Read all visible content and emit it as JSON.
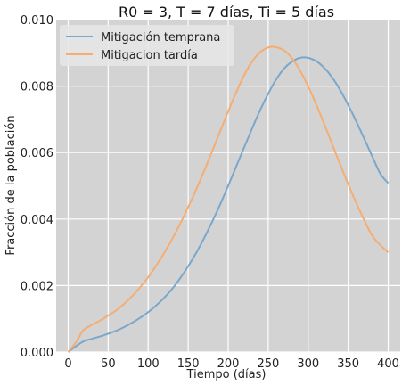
{
  "chart_data": {
    "type": "line",
    "title": "R0 = 3, T = 7 días, Ti = 5 días",
    "xlabel": "Tiempo (días)",
    "ylabel": "Fracción de la población",
    "xlim": [
      -15,
      415
    ],
    "ylim": [
      0,
      0.01
    ],
    "x_ticks": [
      0,
      50,
      100,
      150,
      200,
      250,
      300,
      350,
      400
    ],
    "x_tick_labels": [
      "0",
      "50",
      "100",
      "150",
      "200",
      "250",
      "300",
      "350",
      "400"
    ],
    "y_ticks": [
      0,
      0.002,
      0.004,
      0.006,
      0.008,
      0.01
    ],
    "y_tick_labels": [
      "0.000",
      "0.002",
      "0.004",
      "0.006",
      "0.008",
      "0.010"
    ],
    "grid": true,
    "background": "#d3d3d3",
    "legend_position": "top-left",
    "series": [
      {
        "name": "Mitigación temprana",
        "color": "#7aa7cc",
        "x": [
          0,
          10,
          20,
          30,
          40,
          50,
          60,
          70,
          80,
          90,
          100,
          110,
          120,
          130,
          140,
          150,
          160,
          170,
          180,
          190,
          200,
          210,
          220,
          230,
          240,
          250,
          260,
          270,
          280,
          290,
          300,
          310,
          320,
          330,
          340,
          350,
          360,
          370,
          380,
          390,
          400
        ],
        "y": [
          0.0,
          0.00018,
          0.00033,
          0.0004,
          0.00047,
          0.00055,
          0.00064,
          0.00075,
          0.00088,
          0.00103,
          0.0012,
          0.0014,
          0.00163,
          0.0019,
          0.00222,
          0.00258,
          0.00298,
          0.00343,
          0.00392,
          0.00444,
          0.005,
          0.00558,
          0.00616,
          0.00673,
          0.00728,
          0.00777,
          0.0082,
          0.00853,
          0.00874,
          0.00885,
          0.00885,
          0.00875,
          0.00855,
          0.00826,
          0.00788,
          0.00743,
          0.00694,
          0.00642,
          0.00589,
          0.00537,
          0.00508
        ]
      },
      {
        "name": "Mitigacion tardía",
        "color": "#f5ad72",
        "x": [
          0,
          10,
          17,
          20,
          30,
          40,
          50,
          60,
          70,
          80,
          90,
          100,
          110,
          120,
          130,
          140,
          150,
          160,
          170,
          180,
          190,
          200,
          210,
          220,
          230,
          240,
          250,
          258,
          270,
          280,
          290,
          300,
          310,
          320,
          330,
          340,
          350,
          360,
          370,
          380,
          390,
          400
        ],
        "y": [
          0.0,
          0.0003,
          0.0006,
          0.00068,
          0.00082,
          0.00095,
          0.0011,
          0.00125,
          0.00145,
          0.00168,
          0.00195,
          0.00225,
          0.0026,
          0.00298,
          0.0034,
          0.00386,
          0.00436,
          0.00489,
          0.00545,
          0.00604,
          0.00664,
          0.00724,
          0.00781,
          0.00833,
          0.00874,
          0.00902,
          0.00916,
          0.00918,
          0.00907,
          0.00883,
          0.00846,
          0.00799,
          0.00745,
          0.00686,
          0.00625,
          0.00564,
          0.00505,
          0.00449,
          0.00397,
          0.0035,
          0.00322,
          0.003
        ]
      }
    ]
  }
}
